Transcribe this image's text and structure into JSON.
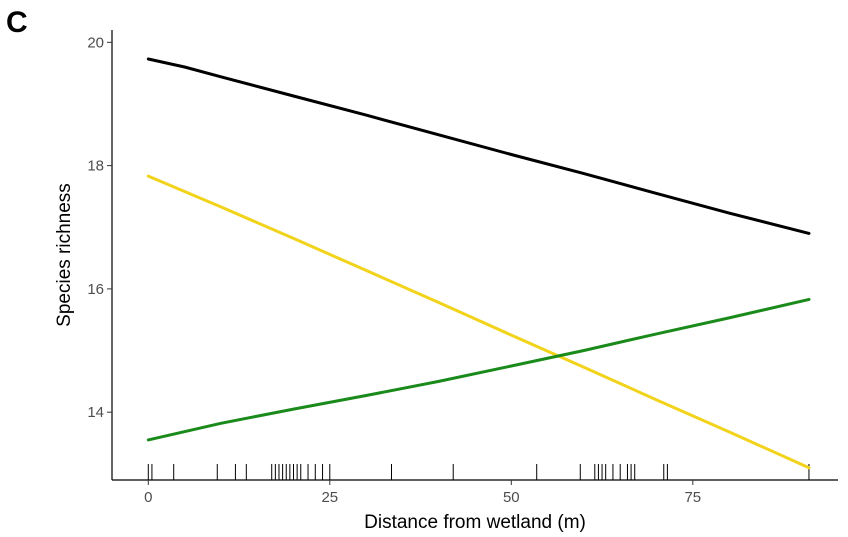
{
  "panel_label": "C",
  "chart_data": {
    "type": "line",
    "title": "",
    "xlabel": "Distance from wetland (m)",
    "ylabel": "Species richness",
    "xlim": [
      -5,
      95
    ],
    "ylim": [
      12.9,
      20.2
    ],
    "xticks": [
      0,
      25,
      50,
      75
    ],
    "yticks": [
      14,
      16,
      18,
      20
    ],
    "grid": false,
    "legend": "none",
    "series": [
      {
        "color": "#000000",
        "x": [
          0,
          5,
          10,
          20,
          30,
          40,
          50,
          60,
          70,
          80,
          91
        ],
        "values": [
          19.73,
          19.6,
          19.44,
          19.13,
          18.82,
          18.5,
          18.18,
          17.87,
          17.55,
          17.23,
          16.9
        ]
      },
      {
        "color": "#f2d31b",
        "x": [
          0,
          10,
          20,
          30,
          40,
          50,
          60,
          70,
          80,
          91
        ],
        "values": [
          17.83,
          17.33,
          16.82,
          16.3,
          15.78,
          15.25,
          14.73,
          14.2,
          13.68,
          13.1
        ]
      },
      {
        "color": "#1a8a1a",
        "x": [
          0,
          10,
          20,
          30,
          40,
          50,
          60,
          70,
          80,
          91
        ],
        "values": [
          13.55,
          13.82,
          14.05,
          14.27,
          14.5,
          14.75,
          15.0,
          15.27,
          15.53,
          15.83
        ]
      }
    ],
    "rug_x": [
      0,
      0.5,
      3.5,
      9.5,
      12,
      13.5,
      17,
      17.5,
      18,
      18.5,
      19,
      19.5,
      20,
      20.5,
      21,
      22,
      23,
      24,
      25,
      33.5,
      42,
      53.5,
      59.5,
      61.5,
      62,
      62.5,
      63,
      64,
      65,
      66,
      66.5,
      67,
      71,
      71.5,
      91
    ]
  }
}
